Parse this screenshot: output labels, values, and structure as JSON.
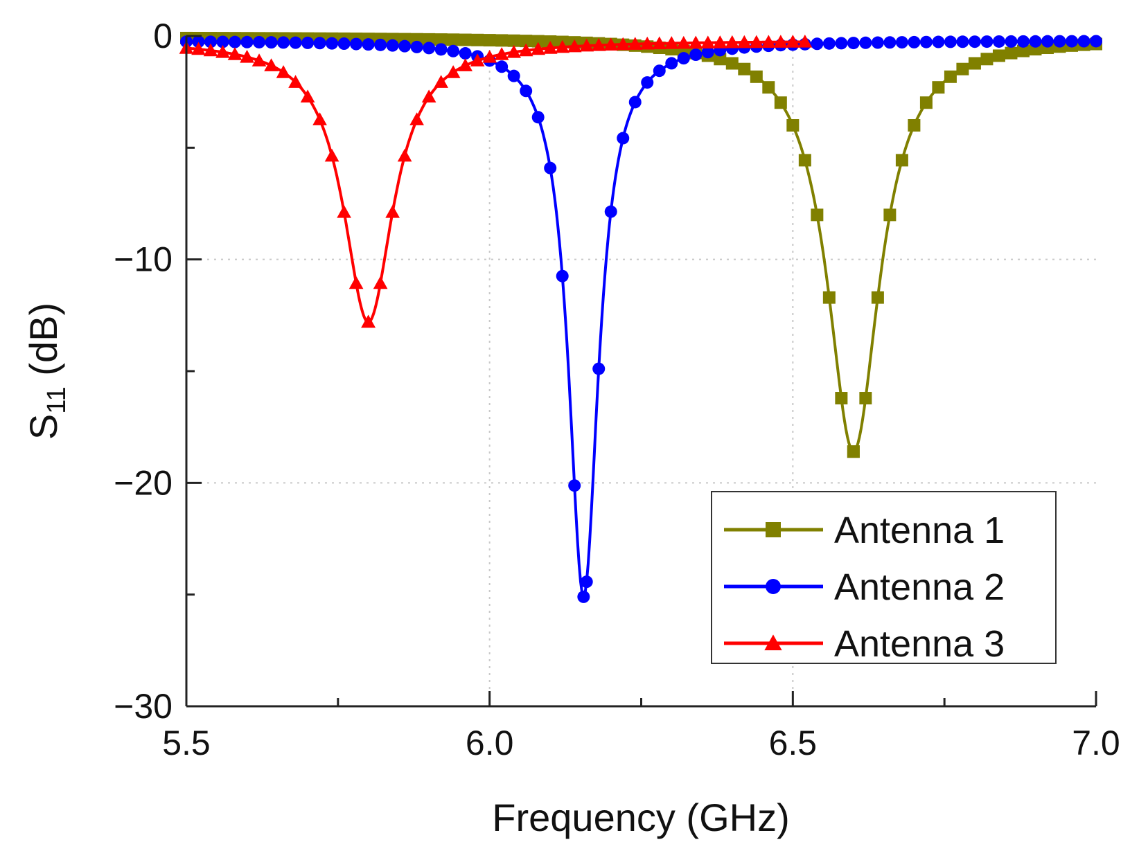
{
  "chart_data": {
    "type": "line",
    "title": "",
    "xlabel": "Frequency (GHz)",
    "ylabel_main": "S",
    "ylabel_sub": "11",
    "ylabel_unit": "(dB)",
    "xlim": [
      5.5,
      7.0
    ],
    "ylim": [
      -30,
      0
    ],
    "xticks": [
      5.5,
      6.0,
      6.5,
      7.0
    ],
    "xtick_labels": [
      "5.5",
      "6.0",
      "6.5",
      "7.0"
    ],
    "yticks": [
      0,
      -10,
      -20,
      -30
    ],
    "ytick_labels": [
      "0",
      "−10",
      "−20",
      "−30"
    ],
    "grid": "dotted at y = -10 and -20, x = 6.0 and 6.5",
    "legend_position": "bottom-right",
    "series": [
      {
        "name": "Antenna 1",
        "color": "#808000",
        "marker": "square",
        "center": 6.6,
        "min_db": -18.6,
        "half_width": 0.052,
        "floor_db": -0.05,
        "x_range": [
          5.5,
          7.0
        ]
      },
      {
        "name": "Antenna 2",
        "color": "#0000ff",
        "marker": "circle",
        "center": 6.155,
        "min_db": -25.1,
        "half_width": 0.03,
        "floor_db": -0.2,
        "x_range": [
          5.5,
          7.0
        ]
      },
      {
        "name": "Antenna 3",
        "color": "#ff0000",
        "marker": "triangle",
        "center": 5.8,
        "min_db": -12.8,
        "half_width": 0.05,
        "floor_db": -0.2,
        "x_range": [
          5.5,
          6.52
        ]
      }
    ]
  }
}
